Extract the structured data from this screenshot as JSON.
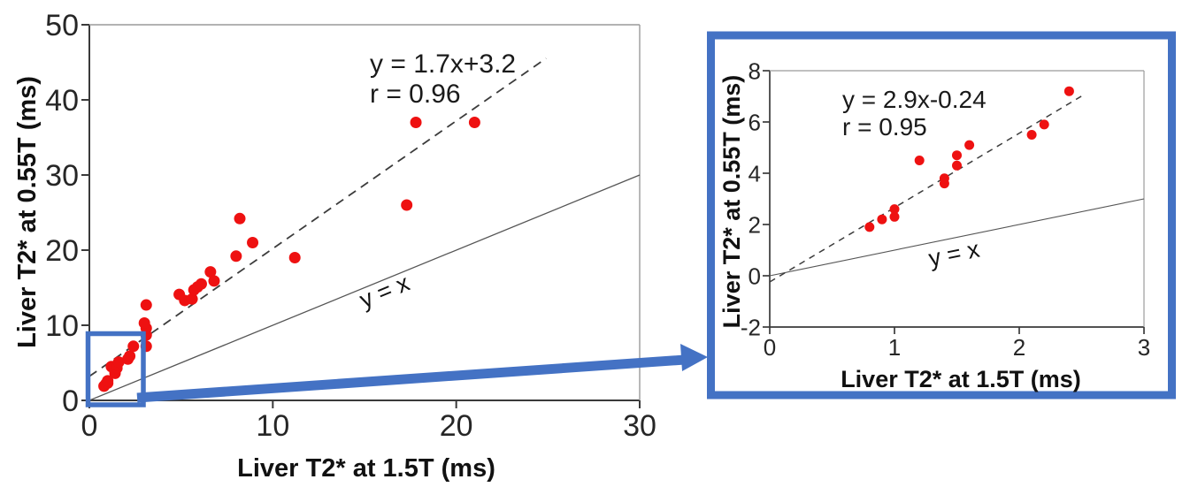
{
  "figure": {
    "background": "#ffffff",
    "accent_blue": "#4472C4",
    "dot_color": "#ee1111",
    "fit_line_color": "#3c3c3c",
    "identity_line_color": "#555555",
    "spine_dark": "#3a3a3a",
    "spine_light": "#9a9a9a",
    "tick_text_color": "#262626"
  },
  "zoom_link": {
    "box_x_range": [
      0,
      2.9
    ],
    "box_y_range": [
      -0.5,
      8.8
    ]
  },
  "chart_data": [
    {
      "id": "main",
      "type": "scatter",
      "xlabel": "Liver T2* at 1.5T (ms)",
      "ylabel": "Liver T2* at 0.55T (ms)",
      "xlim": [
        0,
        30
      ],
      "ylim": [
        0,
        50
      ],
      "xticks": [
        0,
        10,
        20,
        30
      ],
      "yticks": [
        0,
        10,
        20,
        30,
        40,
        50
      ],
      "grid": false,
      "fit_label": "y = 1.7x+3.2",
      "r_label": "r = 0.96",
      "identity_label": "y = x",
      "fit": {
        "slope": 1.7,
        "intercept": 3.2,
        "x_start": 0,
        "x_end": 24.9
      },
      "identity": {
        "slope": 1,
        "intercept": 0,
        "x_start": 0,
        "x_end": 30
      },
      "points": [
        [
          0.8,
          1.9
        ],
        [
          0.9,
          2.2
        ],
        [
          1.0,
          2.3
        ],
        [
          1.0,
          2.6
        ],
        [
          1.2,
          4.5
        ],
        [
          1.4,
          3.6
        ],
        [
          1.4,
          3.8
        ],
        [
          1.5,
          4.3
        ],
        [
          1.5,
          4.7
        ],
        [
          1.6,
          5.1
        ],
        [
          2.1,
          5.5
        ],
        [
          2.2,
          5.9
        ],
        [
          2.4,
          7.2
        ],
        [
          3.1,
          7.2
        ],
        [
          3.1,
          8.7
        ],
        [
          3.1,
          9.6
        ],
        [
          3.0,
          10.3
        ],
        [
          3.1,
          12.7
        ],
        [
          4.9,
          14.1
        ],
        [
          5.2,
          13.3
        ],
        [
          5.6,
          13.5
        ],
        [
          5.7,
          14.7
        ],
        [
          5.9,
          15.1
        ],
        [
          6.1,
          15.5
        ],
        [
          6.6,
          17.1
        ],
        [
          6.8,
          15.9
        ],
        [
          8.0,
          19.2
        ],
        [
          8.2,
          24.2
        ],
        [
          8.9,
          21.0
        ],
        [
          11.2,
          19.0
        ],
        [
          17.3,
          26.0
        ],
        [
          17.8,
          37.0
        ],
        [
          21.0,
          37.0
        ]
      ]
    },
    {
      "id": "inset",
      "type": "scatter",
      "xlabel": "Liver T2* at 1.5T (ms)",
      "ylabel": "Liver T2* at 0.55T (ms)",
      "xlim": [
        0,
        3
      ],
      "ylim": [
        -2,
        8
      ],
      "xticks": [
        0,
        1,
        2,
        3
      ],
      "yticks": [
        -2,
        0,
        2,
        4,
        6,
        8
      ],
      "grid": false,
      "fit_label": "y = 2.9x-0.24",
      "r_label": "r = 0.95",
      "identity_label": "y = x",
      "fit": {
        "slope": 2.9,
        "intercept": -0.24,
        "x_start": 0,
        "x_end": 2.5
      },
      "identity": {
        "slope": 1,
        "intercept": 0,
        "x_start": 0,
        "x_end": 3
      },
      "points": [
        [
          0.8,
          1.9
        ],
        [
          0.9,
          2.2
        ],
        [
          1.0,
          2.3
        ],
        [
          1.0,
          2.6
        ],
        [
          1.2,
          4.5
        ],
        [
          1.4,
          3.6
        ],
        [
          1.4,
          3.8
        ],
        [
          1.5,
          4.3
        ],
        [
          1.5,
          4.7
        ],
        [
          1.6,
          5.1
        ],
        [
          2.1,
          5.5
        ],
        [
          2.2,
          5.9
        ],
        [
          2.4,
          7.2
        ]
      ]
    }
  ]
}
